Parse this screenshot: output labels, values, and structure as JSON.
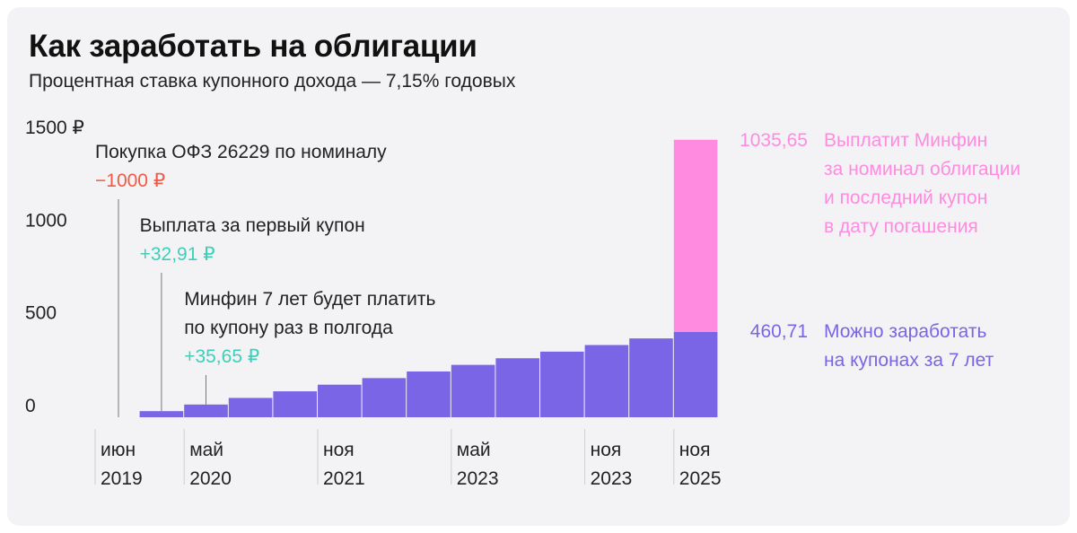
{
  "title": "Как заработать на облигации",
  "subtitle": "Процентная ставка купонного дохода — 7,15% годовых",
  "colors": {
    "coupon": "#7a65e6",
    "nominal": "#ff8be0",
    "negative": "#f05a46",
    "positive": "#3fcfb8",
    "text": "#222222"
  },
  "chart_data": {
    "type": "bar",
    "ylim": [
      0,
      1500
    ],
    "yticks": [
      {
        "value": 0,
        "label": "0"
      },
      {
        "value": 500,
        "label": "500"
      },
      {
        "value": 1000,
        "label": "1000"
      },
      {
        "value": 1500,
        "label": "1500 ₽"
      }
    ],
    "x_labels": [
      {
        "index": 0,
        "line1": "июн",
        "line2": "2019"
      },
      {
        "index": 2,
        "line1": "май",
        "line2": "2020"
      },
      {
        "index": 5,
        "line1": "ноя",
        "line2": "2021"
      },
      {
        "index": 8,
        "line1": "май",
        "line2": "2023"
      },
      {
        "index": 11,
        "line1": "ноя",
        "line2": "2023"
      },
      {
        "index": 13,
        "line1": "ноя",
        "line2": "2025"
      }
    ],
    "series": [
      {
        "name": "coupon",
        "values": [
          0,
          32.91,
          68.56,
          104.21,
          139.86,
          175.51,
          211.16,
          246.81,
          282.46,
          318.11,
          353.76,
          389.41,
          425.06,
          460.71
        ]
      },
      {
        "name": "nominal",
        "values": [
          0,
          0,
          0,
          0,
          0,
          0,
          0,
          0,
          0,
          0,
          0,
          0,
          0,
          1035.65
        ]
      }
    ],
    "annotations": [
      {
        "bar_index": 0,
        "text_lines": [
          "Покупка ОФЗ 26229 по номиналу"
        ],
        "value_text": "−1000 ₽",
        "kind": "negative"
      },
      {
        "bar_index": 1,
        "text_lines": [
          "Выплата за первый купон"
        ],
        "value_text": "+32,91 ₽",
        "kind": "positive"
      },
      {
        "bar_index": 2,
        "text_lines": [
          "Минфин 7 лет будет платить",
          "по купону раз в полгода"
        ],
        "value_text": "+35,65 ₽",
        "kind": "positive"
      }
    ],
    "side_labels": [
      {
        "value_text": "1035,65",
        "lines": [
          "Выплатит Минфин",
          "за номинал облигации",
          "и последний купон",
          "в дату погашения"
        ],
        "kind": "nominal"
      },
      {
        "value_text": "460,71",
        "lines": [
          "Можно заработать",
          "на купонах за 7 лет"
        ],
        "kind": "coupon"
      }
    ]
  }
}
